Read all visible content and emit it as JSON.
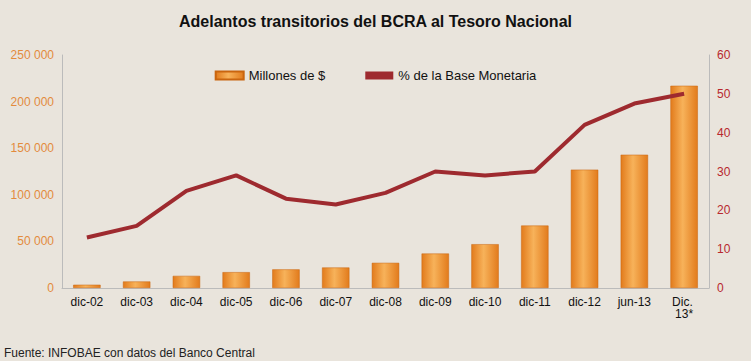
{
  "chart_data": {
    "type": "bar",
    "title": "Adelantos transitorios del BCRA al Tesoro Nacional",
    "categories": [
      "dic-02",
      "dic-03",
      "dic-04",
      "dic-05",
      "dic-06",
      "dic-07",
      "dic-08",
      "dic-09",
      "dic-10",
      "dic-11",
      "dic-12",
      "jun-13",
      "Dic. 13*"
    ],
    "series": [
      {
        "name": "Millones de $",
        "type": "bar",
        "color": "#e27b1c",
        "values": [
          3500,
          7000,
          13000,
          17000,
          20000,
          22000,
          27000,
          37000,
          47000,
          67000,
          127000,
          143000,
          217000
        ]
      },
      {
        "name": "% de la Base Monetaria",
        "type": "line",
        "axis": "y2",
        "color": "#9e2a2f",
        "values": [
          13,
          16,
          25,
          29,
          23,
          21.5,
          24.5,
          30,
          29,
          30,
          42,
          47.5,
          50
        ]
      }
    ],
    "ylim": [
      0,
      250000
    ],
    "yticks": [
      0,
      {
        "value": 50000,
        "label": "50 000"
      },
      {
        "value": 100000,
        "label": "100 000"
      },
      {
        "value": 150000,
        "label": "150 000"
      },
      {
        "value": 200000,
        "label": "200 000"
      },
      {
        "value": 250000,
        "label": "250 000"
      }
    ],
    "y2lim": [
      0,
      60
    ],
    "y2ticks": [
      0,
      10,
      20,
      30,
      40,
      50,
      60
    ],
    "grid": false,
    "legend": "top",
    "annotations": [
      "Fuente: INFOBAE con datos del Banco Central"
    ]
  }
}
